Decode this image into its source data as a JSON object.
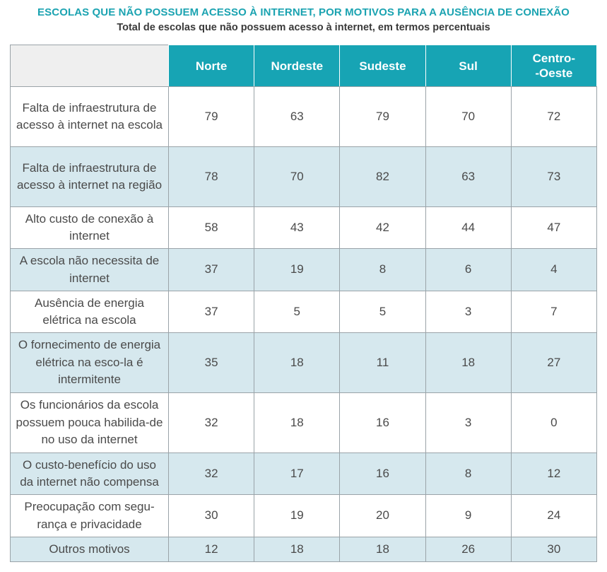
{
  "title": "ESCOLAS QUE NÃO POSSUEM ACESSO À INTERNET, POR MOTIVOS PARA A AUSÊNCIA DE CONEXÃO",
  "subtitle": "Total de escolas que não possuem acesso à internet, em termos percentuais",
  "colors": {
    "header_bg": "#17a4b4",
    "title": "#1ba3b1",
    "row_alt": "#d6e8ee"
  },
  "chart_data": {
    "type": "table",
    "title": "ESCOLAS QUE NÃO POSSUEM ACESSO À INTERNET, POR MOTIVOS PARA A AUSÊNCIA DE CONEXÃO",
    "subtitle": "Total de escolas que não possuem acesso à internet, em termos percentuais",
    "columns": [
      {
        "label": "Norte"
      },
      {
        "label": "Nordeste"
      },
      {
        "label": "Sudeste"
      },
      {
        "label": "Sul"
      },
      {
        "label": "Centro-\n-Oeste"
      }
    ],
    "rows": [
      {
        "label": "Falta de infraestrutura de acesso à internet na escola",
        "values": [
          79,
          63,
          79,
          70,
          72
        ]
      },
      {
        "label": "Falta de infraestrutura de acesso à internet na região",
        "values": [
          78,
          70,
          82,
          63,
          73
        ]
      },
      {
        "label": "Alto custo de conexão à internet",
        "values": [
          58,
          43,
          42,
          44,
          47
        ]
      },
      {
        "label": "A escola não necessita de internet",
        "values": [
          37,
          19,
          8,
          6,
          4
        ]
      },
      {
        "label": "Ausência de energia elétrica na escola",
        "values": [
          37,
          5,
          5,
          3,
          7
        ]
      },
      {
        "label": "O fornecimento de energia elétrica na esco-la é intermitente",
        "values": [
          35,
          18,
          11,
          18,
          27
        ]
      },
      {
        "label": "Os funcionários da escola possuem pouca habilida-de no uso da internet",
        "values": [
          32,
          18,
          16,
          3,
          0
        ]
      },
      {
        "label": "O custo-benefício do uso da internet não compensa",
        "values": [
          32,
          17,
          16,
          8,
          12
        ]
      },
      {
        "label": "Preocupação com segu-rança e privacidade",
        "values": [
          30,
          19,
          20,
          9,
          24
        ]
      },
      {
        "label": "Outros motivos",
        "values": [
          12,
          18,
          18,
          26,
          30
        ]
      }
    ]
  }
}
